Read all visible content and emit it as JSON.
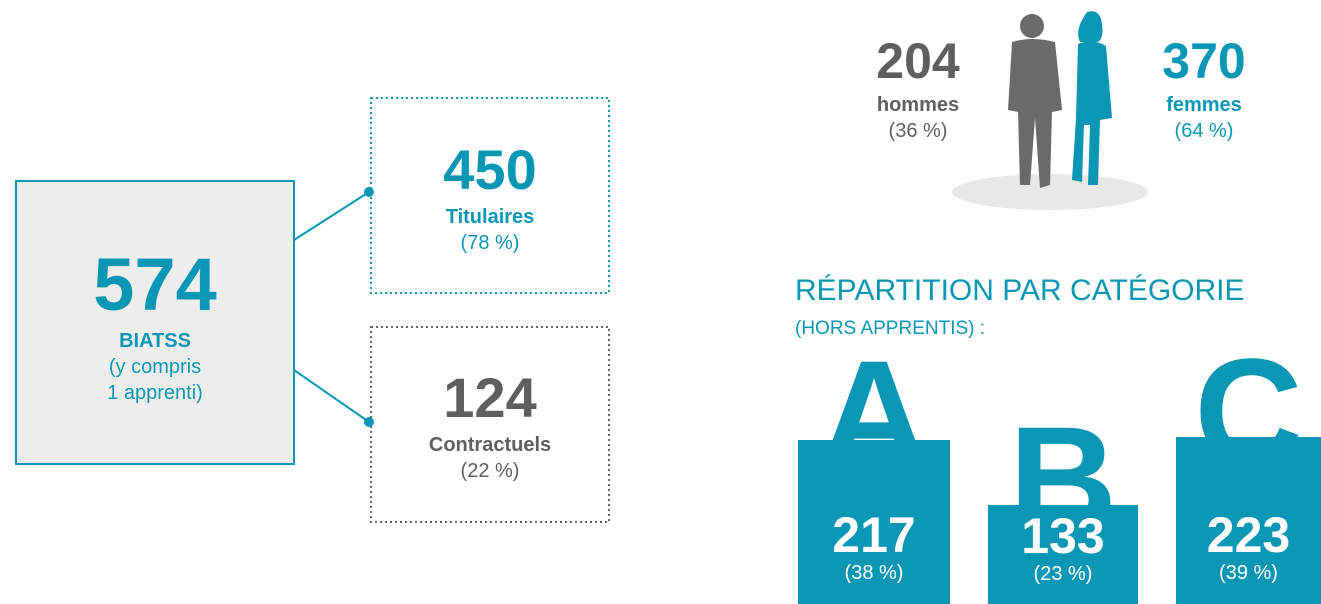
{
  "total": {
    "value": 574,
    "label": "BIATSS",
    "note": [
      "(y compris",
      "1 apprenti)"
    ]
  },
  "breakdown": [
    {
      "value": 450,
      "label": "Titulaires",
      "share": "(78 %)"
    },
    {
      "value": 124,
      "label": "Contractuels",
      "share": "(22 %)"
    }
  ],
  "gender": [
    {
      "value": 204,
      "label": "hommes",
      "share": "(36 %)"
    },
    {
      "value": 370,
      "label": "femmes",
      "share": "(64 %)"
    }
  ],
  "categories": {
    "title": "RÉPARTITION PAR CATÉGORIE",
    "subtitle": "(HORS APPRENTIS) :",
    "items": [
      {
        "letter": "A",
        "value": 217,
        "share": "(38 %)"
      },
      {
        "letter": "B",
        "value": 133,
        "share": "(23 %)"
      },
      {
        "letter": "C",
        "value": 223,
        "share": "(39 %)"
      }
    ]
  }
}
